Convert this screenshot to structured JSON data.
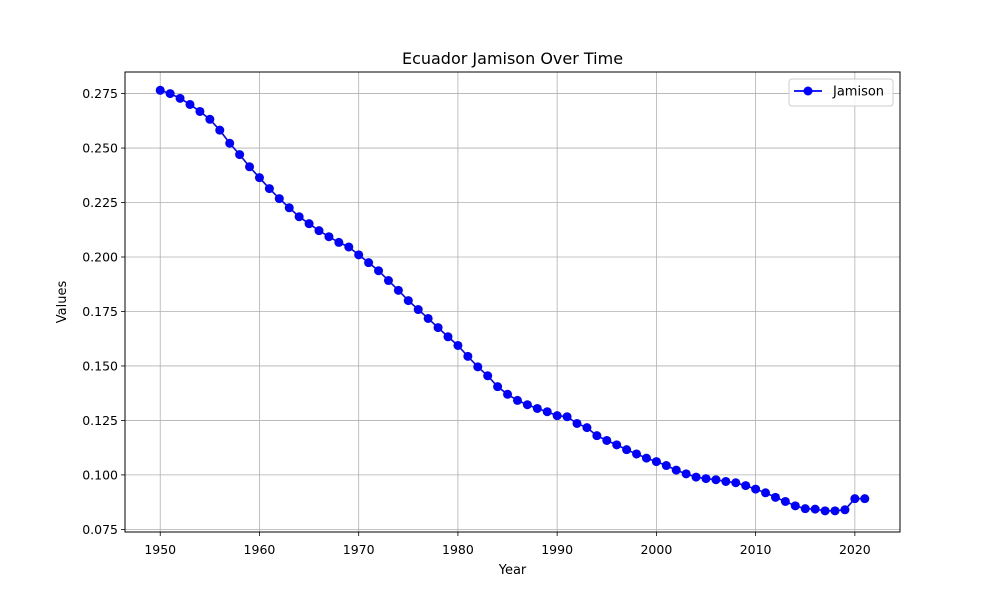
{
  "chart_data": {
    "type": "line",
    "title": "Ecuador Jamison Over Time",
    "xlabel": "Year",
    "ylabel": "Values",
    "xlim": [
      1946.45,
      2024.55
    ],
    "ylim": [
      0.0738,
      0.2849
    ],
    "xticks": [
      1950,
      1960,
      1970,
      1980,
      1990,
      2000,
      2010,
      2020
    ],
    "yticks": [
      0.075,
      0.1,
      0.125,
      0.15,
      0.175,
      0.2,
      0.225,
      0.25,
      0.275
    ],
    "ytick_labels": [
      "0.075",
      "0.100",
      "0.125",
      "0.150",
      "0.175",
      "0.200",
      "0.225",
      "0.250",
      "0.275"
    ],
    "grid": true,
    "legend": "top-right",
    "series": [
      {
        "name": "Jamison",
        "color": "#0000ff",
        "marker": "circle",
        "x": [
          1950,
          1951,
          1952,
          1953,
          1954,
          1955,
          1956,
          1957,
          1958,
          1959,
          1960,
          1961,
          1962,
          1963,
          1964,
          1965,
          1966,
          1967,
          1968,
          1969,
          1970,
          1971,
          1972,
          1973,
          1974,
          1975,
          1976,
          1977,
          1978,
          1979,
          1980,
          1981,
          1982,
          1983,
          1984,
          1985,
          1986,
          1987,
          1988,
          1989,
          1990,
          1991,
          1992,
          1993,
          1994,
          1995,
          1996,
          1997,
          1998,
          1999,
          2000,
          2001,
          2002,
          2003,
          2004,
          2005,
          2006,
          2007,
          2008,
          2009,
          2010,
          2011,
          2012,
          2013,
          2014,
          2015,
          2016,
          2017,
          2018,
          2019,
          2020,
          2021
        ],
        "values": [
          0.2765,
          0.275,
          0.2728,
          0.27,
          0.2668,
          0.2632,
          0.2582,
          0.2522,
          0.247,
          0.2414,
          0.2364,
          0.2314,
          0.2268,
          0.2226,
          0.2185,
          0.2153,
          0.2121,
          0.2093,
          0.2067,
          0.2046,
          0.201,
          0.1974,
          0.1937,
          0.1892,
          0.1847,
          0.18,
          0.1759,
          0.1718,
          0.1676,
          0.1634,
          0.1594,
          0.1544,
          0.1496,
          0.1455,
          0.1405,
          0.137,
          0.1342,
          0.1322,
          0.1305,
          0.129,
          0.1272,
          0.1267,
          0.1236,
          0.1217,
          0.118,
          0.1158,
          0.1138,
          0.1116,
          0.1096,
          0.1077,
          0.1061,
          0.1043,
          0.1022,
          0.1005,
          0.099,
          0.0983,
          0.0978,
          0.097,
          0.0964,
          0.0951,
          0.0935,
          0.0918,
          0.0897,
          0.0878,
          0.0858,
          0.0845,
          0.0843,
          0.0835,
          0.0835,
          0.084,
          0.0891,
          0.0891
        ]
      }
    ]
  }
}
